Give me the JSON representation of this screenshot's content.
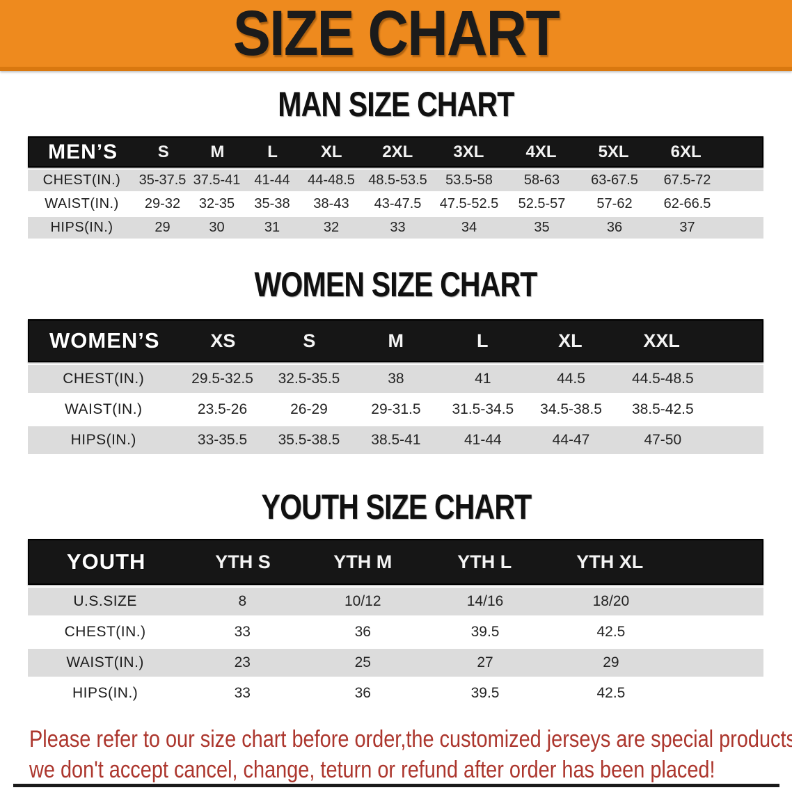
{
  "banner": {
    "title": "SIZE CHART"
  },
  "colors": {
    "banner_orange": "#EE8A1E",
    "banner_orange_dark_edge": "#D9780F",
    "header_bar_black": "#161616",
    "row_gray": "#DCDCDC",
    "row_white": "#FFFFFF",
    "disclaimer_red": "#AC362D",
    "title_black": "#1B1B1B"
  },
  "sections": [
    {
      "heading": "MAN SIZE CHART",
      "table": {
        "label": "MEN’S",
        "columns": [
          "S",
          "M",
          "L",
          "XL",
          "2XL",
          "3XL",
          "4XL",
          "5XL",
          "6XL"
        ],
        "rows": [
          {
            "label": "CHEST(IN.)",
            "values": [
              "35-37.5",
              "37.5-41",
              "41-44",
              "44-48.5",
              "48.5-53.5",
              "53.5-58",
              "58-63",
              "63-67.5",
              "67.5-72"
            ]
          },
          {
            "label": "WAIST(IN.)",
            "values": [
              "29-32",
              "32-35",
              "35-38",
              "38-43",
              "43-47.5",
              "47.5-52.5",
              "52.5-57",
              "57-62",
              "62-66.5"
            ]
          },
          {
            "label": "HIPS(IN.)",
            "values": [
              "29",
              "30",
              "31",
              "32",
              "33",
              "34",
              "35",
              "36",
              "37"
            ]
          }
        ]
      }
    },
    {
      "heading": "WOMEN SIZE CHART",
      "table": {
        "label": "WOMEN’S",
        "columns": [
          "XS",
          "S",
          "M",
          "L",
          "XL",
          "XXL"
        ],
        "rows": [
          {
            "label": "CHEST(IN.)",
            "values": [
              "29.5-32.5",
              "32.5-35.5",
              "38",
              "41",
              "44.5",
              "44.5-48.5"
            ]
          },
          {
            "label": "WAIST(IN.)",
            "values": [
              "23.5-26",
              "26-29",
              "29-31.5",
              "31.5-34.5",
              "34.5-38.5",
              "38.5-42.5"
            ]
          },
          {
            "label": "HIPS(IN.)",
            "values": [
              "33-35.5",
              "35.5-38.5",
              "38.5-41",
              "41-44",
              "44-47",
              "47-50"
            ]
          }
        ]
      }
    },
    {
      "heading": "YOUTH SIZE CHART",
      "table": {
        "label": "YOUTH",
        "columns": [
          "YTH S",
          "YTH M",
          "YTH L",
          "YTH XL"
        ],
        "rows": [
          {
            "label": "U.S.SIZE",
            "values": [
              "8",
              "10/12",
              "14/16",
              "18/20"
            ]
          },
          {
            "label": "CHEST(IN.)",
            "values": [
              "33",
              "36",
              "39.5",
              "42.5"
            ]
          },
          {
            "label": "WAIST(IN.)",
            "values": [
              "23",
              "25",
              "27",
              "29"
            ]
          },
          {
            "label": "HIPS(IN.)",
            "values": [
              "33",
              "36",
              "39.5",
              "42.5"
            ]
          }
        ]
      }
    }
  ],
  "footer": {
    "line1": "Please refer to our size chart before order,the customized jerseys are special products,",
    "line2": "we don't accept cancel, change, teturn or refund after order has been placed!"
  }
}
